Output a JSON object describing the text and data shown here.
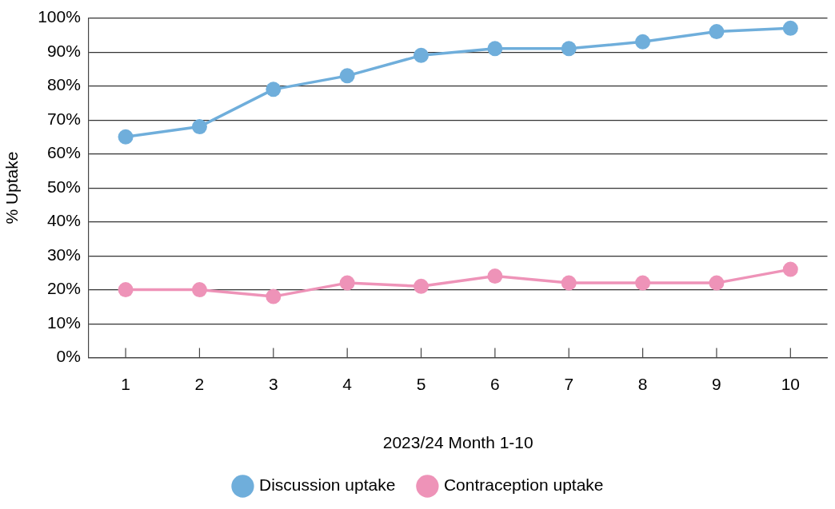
{
  "chart_data": {
    "type": "line",
    "xlabel": "2023/24 Month 1-10",
    "ylabel": "% Uptake",
    "categories": [
      "1",
      "2",
      "3",
      "4",
      "5",
      "6",
      "7",
      "8",
      "9",
      "10"
    ],
    "series": [
      {
        "name": "Discussion uptake",
        "color": "#6faedb",
        "values": [
          65,
          68,
          79,
          83,
          89,
          91,
          91,
          93,
          96,
          97
        ]
      },
      {
        "name": "Contraception uptake",
        "color": "#ee93b8",
        "values": [
          20,
          20,
          18,
          22,
          21,
          24,
          22,
          22,
          22,
          26
        ]
      }
    ],
    "ylim": [
      0,
      100
    ],
    "yticks": [
      {
        "value": 0,
        "label": "0%"
      },
      {
        "value": 10,
        "label": "10%"
      },
      {
        "value": 20,
        "label": "20%"
      },
      {
        "value": 30,
        "label": "30%"
      },
      {
        "value": 40,
        "label": "40%"
      },
      {
        "value": 50,
        "label": "50%"
      },
      {
        "value": 60,
        "label": "60%"
      },
      {
        "value": 70,
        "label": "70%"
      },
      {
        "value": 80,
        "label": "80%"
      },
      {
        "value": 90,
        "label": "90%"
      },
      {
        "value": 100,
        "label": "100%"
      }
    ],
    "grid": "y",
    "legend": "bottom",
    "marker": "circle",
    "line_style": "solid"
  }
}
